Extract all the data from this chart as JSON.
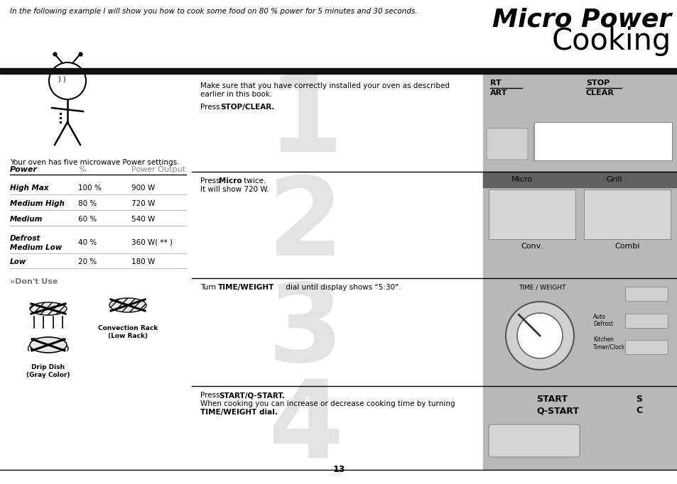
{
  "title_italic": "Micro Power",
  "title_regular": "Cooking",
  "subtitle": "In the following example I will show you how to cook some food on 80 % power for 5 minutes and 30 seconds.",
  "bg_color": "#ffffff",
  "table_header": [
    "POWER",
    "%",
    "Power Output"
  ],
  "table_rows": [
    [
      "HIGH MAX",
      "100 %",
      "900 W"
    ],
    [
      "MEDIUM HIGH",
      "80 %",
      "720 W"
    ],
    [
      "MEDIUM",
      "60 %",
      "540 W"
    ],
    [
      "DEFROST\nMEDIUM LOW",
      "40 %",
      "360 W( ** )"
    ],
    [
      "LOW",
      "20 %",
      "180 W"
    ]
  ],
  "page_number": "13",
  "panel_bg": "#b8b8b8",
  "panel_dark": "#666666",
  "panel_white": "#ffffff",
  "panel_light": "#d0d0d0",
  "step_color": "#cccccc",
  "black": "#000000",
  "gray_text": "#888888"
}
